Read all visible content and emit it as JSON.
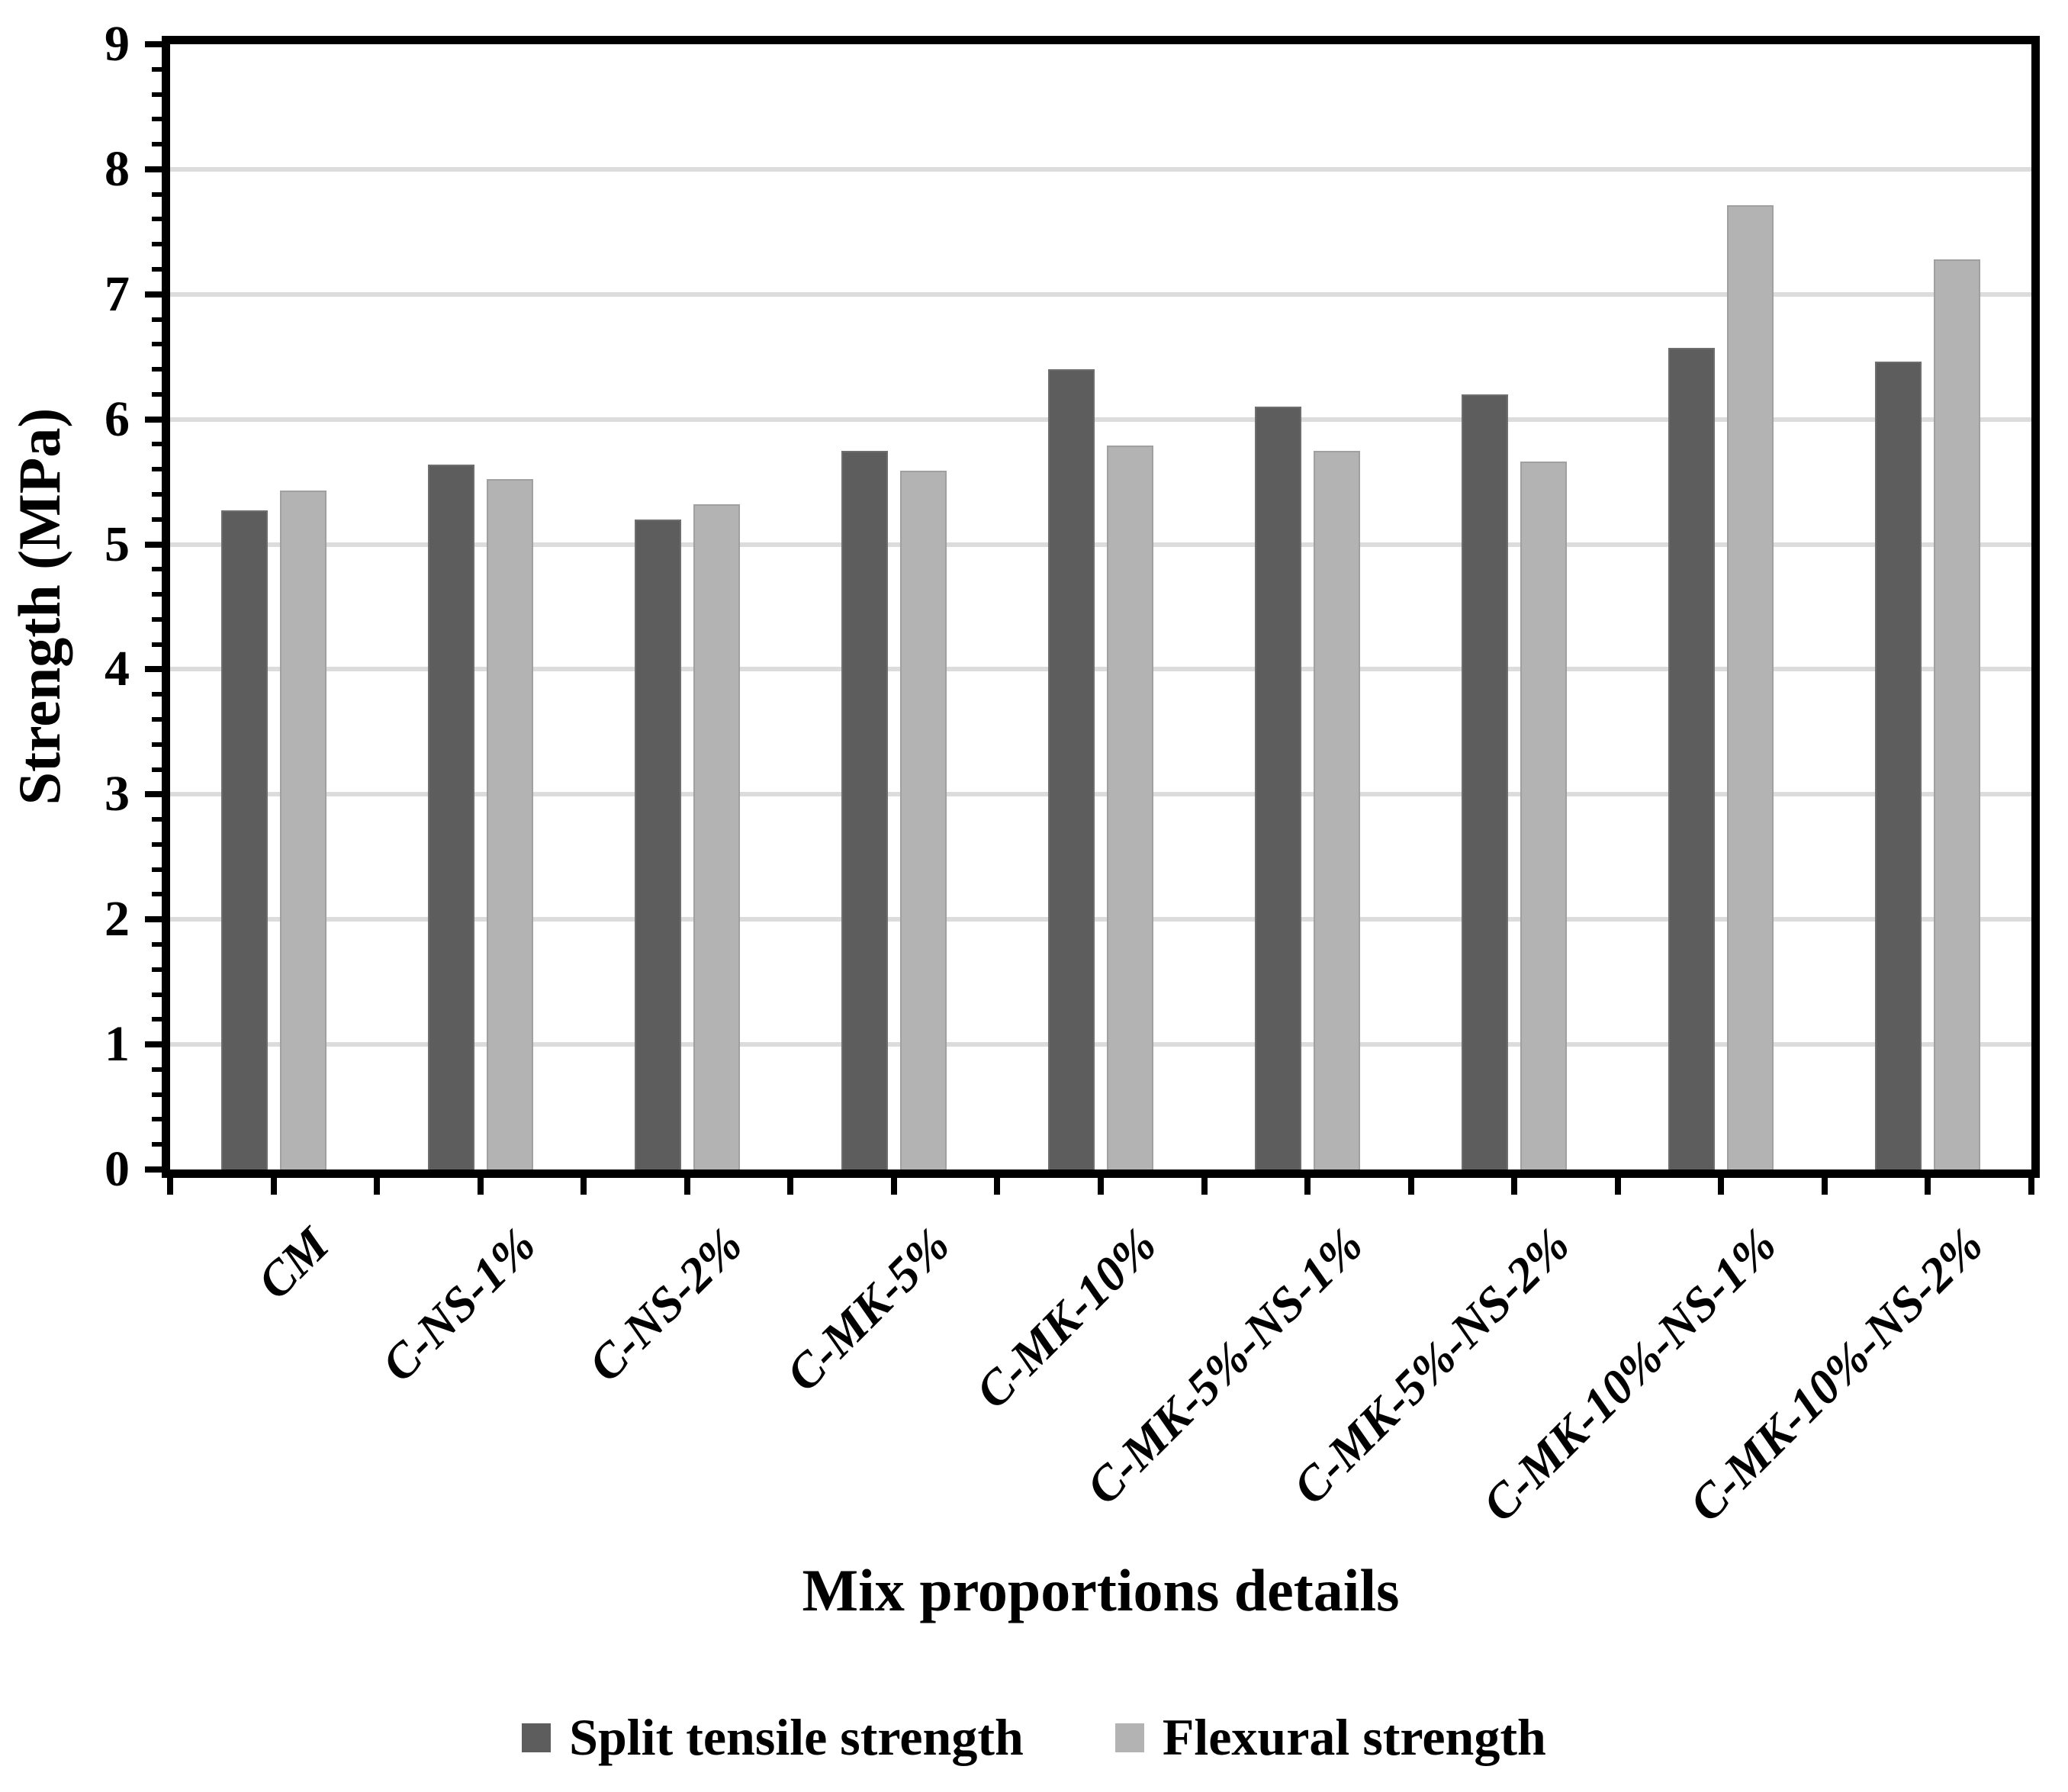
{
  "chart_data": {
    "type": "bar",
    "title": "",
    "xlabel": "Mix proportions details",
    "ylabel": "Strength (MPa)",
    "ylim": [
      0,
      9
    ],
    "yticks": [
      0,
      1,
      2,
      3,
      4,
      5,
      6,
      7,
      8,
      9
    ],
    "yminor_interval": 0.2,
    "grid": "horizontal-major-only",
    "gridline_color": "#dcdcdc",
    "legend_position": "bottom-center",
    "categories": [
      "CM",
      "C-NS-1%",
      "C-NS-2%",
      "C-MK-5%",
      "C-MK-10%",
      "C-MK-5%-NS-1%",
      "C-MK-5%-NS-2%",
      "C-MK-10%-NS-1%",
      "C-MK-10%-NS-2%"
    ],
    "series": [
      {
        "name": "Split tensile strength",
        "color": "#5d5d5d",
        "values": [
          5.27,
          5.64,
          5.2,
          5.75,
          6.4,
          6.1,
          6.2,
          6.57,
          6.46
        ]
      },
      {
        "name": "Flexural strength",
        "color": "#b3b3b3",
        "values": [
          5.43,
          5.52,
          5.32,
          5.59,
          5.79,
          5.75,
          5.66,
          7.71,
          7.28
        ]
      }
    ]
  },
  "legend": {
    "items": [
      {
        "label": "Split tensile strength",
        "color": "#5d5d5d"
      },
      {
        "label": "Flexural strength",
        "color": "#b3b3b3"
      }
    ]
  },
  "colors": {
    "axis": "#000000",
    "gridline": "#dcdcdc",
    "background": "#ffffff",
    "series_dark": "#5d5d5d",
    "series_light": "#b3b3b3"
  }
}
